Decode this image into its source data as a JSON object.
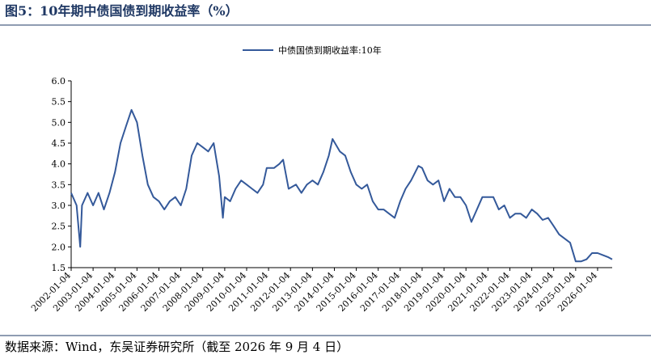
{
  "chart_data": {
    "type": "line",
    "title": "图5：10年期中债国债到期收益率（%）",
    "source": "数据来源：Wind，东吴证券研究所（截至 2026 年 9 月 4 日）",
    "x": [
      "2002-01-04",
      "2002-04-04",
      "2002-06-04",
      "2002-07-04",
      "2002-10-04",
      "2003-01-04",
      "2003-04-04",
      "2003-07-04",
      "2003-10-04",
      "2004-01-04",
      "2004-04-04",
      "2004-07-04",
      "2004-10-04",
      "2005-01-04",
      "2005-04-04",
      "2005-07-04",
      "2005-10-04",
      "2006-01-04",
      "2006-04-04",
      "2006-07-04",
      "2006-10-04",
      "2007-01-04",
      "2007-04-04",
      "2007-07-04",
      "2007-10-04",
      "2008-01-04",
      "2008-04-04",
      "2008-07-04",
      "2008-10-04",
      "2008-12-04",
      "2009-01-04",
      "2009-04-04",
      "2009-07-04",
      "2009-10-04",
      "2010-01-04",
      "2010-04-04",
      "2010-07-04",
      "2010-10-04",
      "2010-12-04",
      "2011-04-04",
      "2011-07-04",
      "2011-09-04",
      "2011-12-04",
      "2012-04-04",
      "2012-07-04",
      "2012-10-04",
      "2013-01-04",
      "2013-04-04",
      "2013-07-04",
      "2013-10-04",
      "2013-12-04",
      "2014-04-04",
      "2014-07-04",
      "2014-10-04",
      "2015-01-04",
      "2015-04-04",
      "2015-07-04",
      "2015-10-04",
      "2016-01-04",
      "2016-04-04",
      "2016-07-04",
      "2016-10-04",
      "2017-01-04",
      "2017-04-04",
      "2017-07-04",
      "2017-11-04",
      "2018-01-04",
      "2018-04-04",
      "2018-07-04",
      "2018-10-04",
      "2019-01-04",
      "2019-04-04",
      "2019-07-04",
      "2019-10-04",
      "2020-01-04",
      "2020-04-04",
      "2020-07-04",
      "2020-10-04",
      "2021-01-04",
      "2021-04-04",
      "2021-07-04",
      "2021-10-04",
      "2022-01-04",
      "2022-04-04",
      "2022-07-04",
      "2022-10-04",
      "2023-01-04",
      "2023-04-04",
      "2023-07-04",
      "2023-10-04",
      "2024-01-04",
      "2024-04-04",
      "2024-07-04",
      "2024-10-04",
      "2025-01-04",
      "2025-04-04",
      "2025-07-04",
      "2025-10-04",
      "2026-01-04",
      "2026-04-04",
      "2026-07-04",
      "2026-09-04"
    ],
    "series": [
      {
        "name": "中债国债到期收益率:10年",
        "color": "#34599a",
        "values": [
          3.3,
          3.0,
          2.0,
          3.0,
          3.3,
          3.0,
          3.3,
          2.9,
          3.3,
          3.8,
          4.5,
          4.9,
          5.3,
          5.0,
          4.2,
          3.5,
          3.2,
          3.1,
          2.9,
          3.1,
          3.2,
          3.0,
          3.4,
          4.2,
          4.5,
          4.4,
          4.3,
          4.5,
          3.7,
          2.7,
          3.2,
          3.1,
          3.4,
          3.6,
          3.5,
          3.4,
          3.3,
          3.5,
          3.9,
          3.9,
          4.0,
          4.1,
          3.4,
          3.5,
          3.3,
          3.5,
          3.6,
          3.5,
          3.8,
          4.2,
          4.6,
          4.3,
          4.2,
          3.8,
          3.5,
          3.4,
          3.5,
          3.1,
          2.9,
          2.9,
          2.8,
          2.7,
          3.1,
          3.4,
          3.6,
          3.95,
          3.9,
          3.6,
          3.5,
          3.6,
          3.1,
          3.4,
          3.2,
          3.2,
          3.0,
          2.6,
          2.9,
          3.2,
          3.2,
          3.2,
          2.9,
          3.0,
          2.7,
          2.8,
          2.8,
          2.7,
          2.9,
          2.8,
          2.65,
          2.7,
          2.5,
          2.3,
          2.2,
          2.1,
          1.65,
          1.65,
          1.7,
          1.85,
          1.85,
          1.8,
          1.75,
          1.7
        ]
      }
    ],
    "xlim": [
      "2002-01-04",
      "2026-09-04"
    ],
    "xticks": [
      "2002-01-04",
      "2003-01-04",
      "2004-01-04",
      "2005-01-04",
      "2006-01-04",
      "2007-01-04",
      "2008-01-04",
      "2009-01-04",
      "2010-01-04",
      "2011-01-04",
      "2012-01-04",
      "2013-01-04",
      "2014-01-04",
      "2015-01-04",
      "2016-01-04",
      "2017-01-04",
      "2018-01-04",
      "2019-01-04",
      "2020-01-04",
      "2021-01-04",
      "2022-01-04",
      "2023-01-04",
      "2024-01-04",
      "2025-01-04",
      "2026-01-04"
    ],
    "ylim": [
      1.5,
      6.0
    ],
    "yticks": [
      {
        "value": 1.5,
        "label": "1.5"
      },
      {
        "value": 2,
        "label": "2.0"
      },
      {
        "value": 2.5,
        "label": "2.5"
      },
      {
        "value": 3,
        "label": "3.0"
      },
      {
        "value": 3.5,
        "label": "3.5"
      },
      {
        "value": 4,
        "label": "4.0"
      },
      {
        "value": 4.5,
        "label": "4.5"
      },
      {
        "value": 5,
        "label": "5.0"
      },
      {
        "value": 5.5,
        "label": "5.5"
      },
      {
        "value": 6,
        "label": "6.0"
      }
    ],
    "legend": "top"
  }
}
